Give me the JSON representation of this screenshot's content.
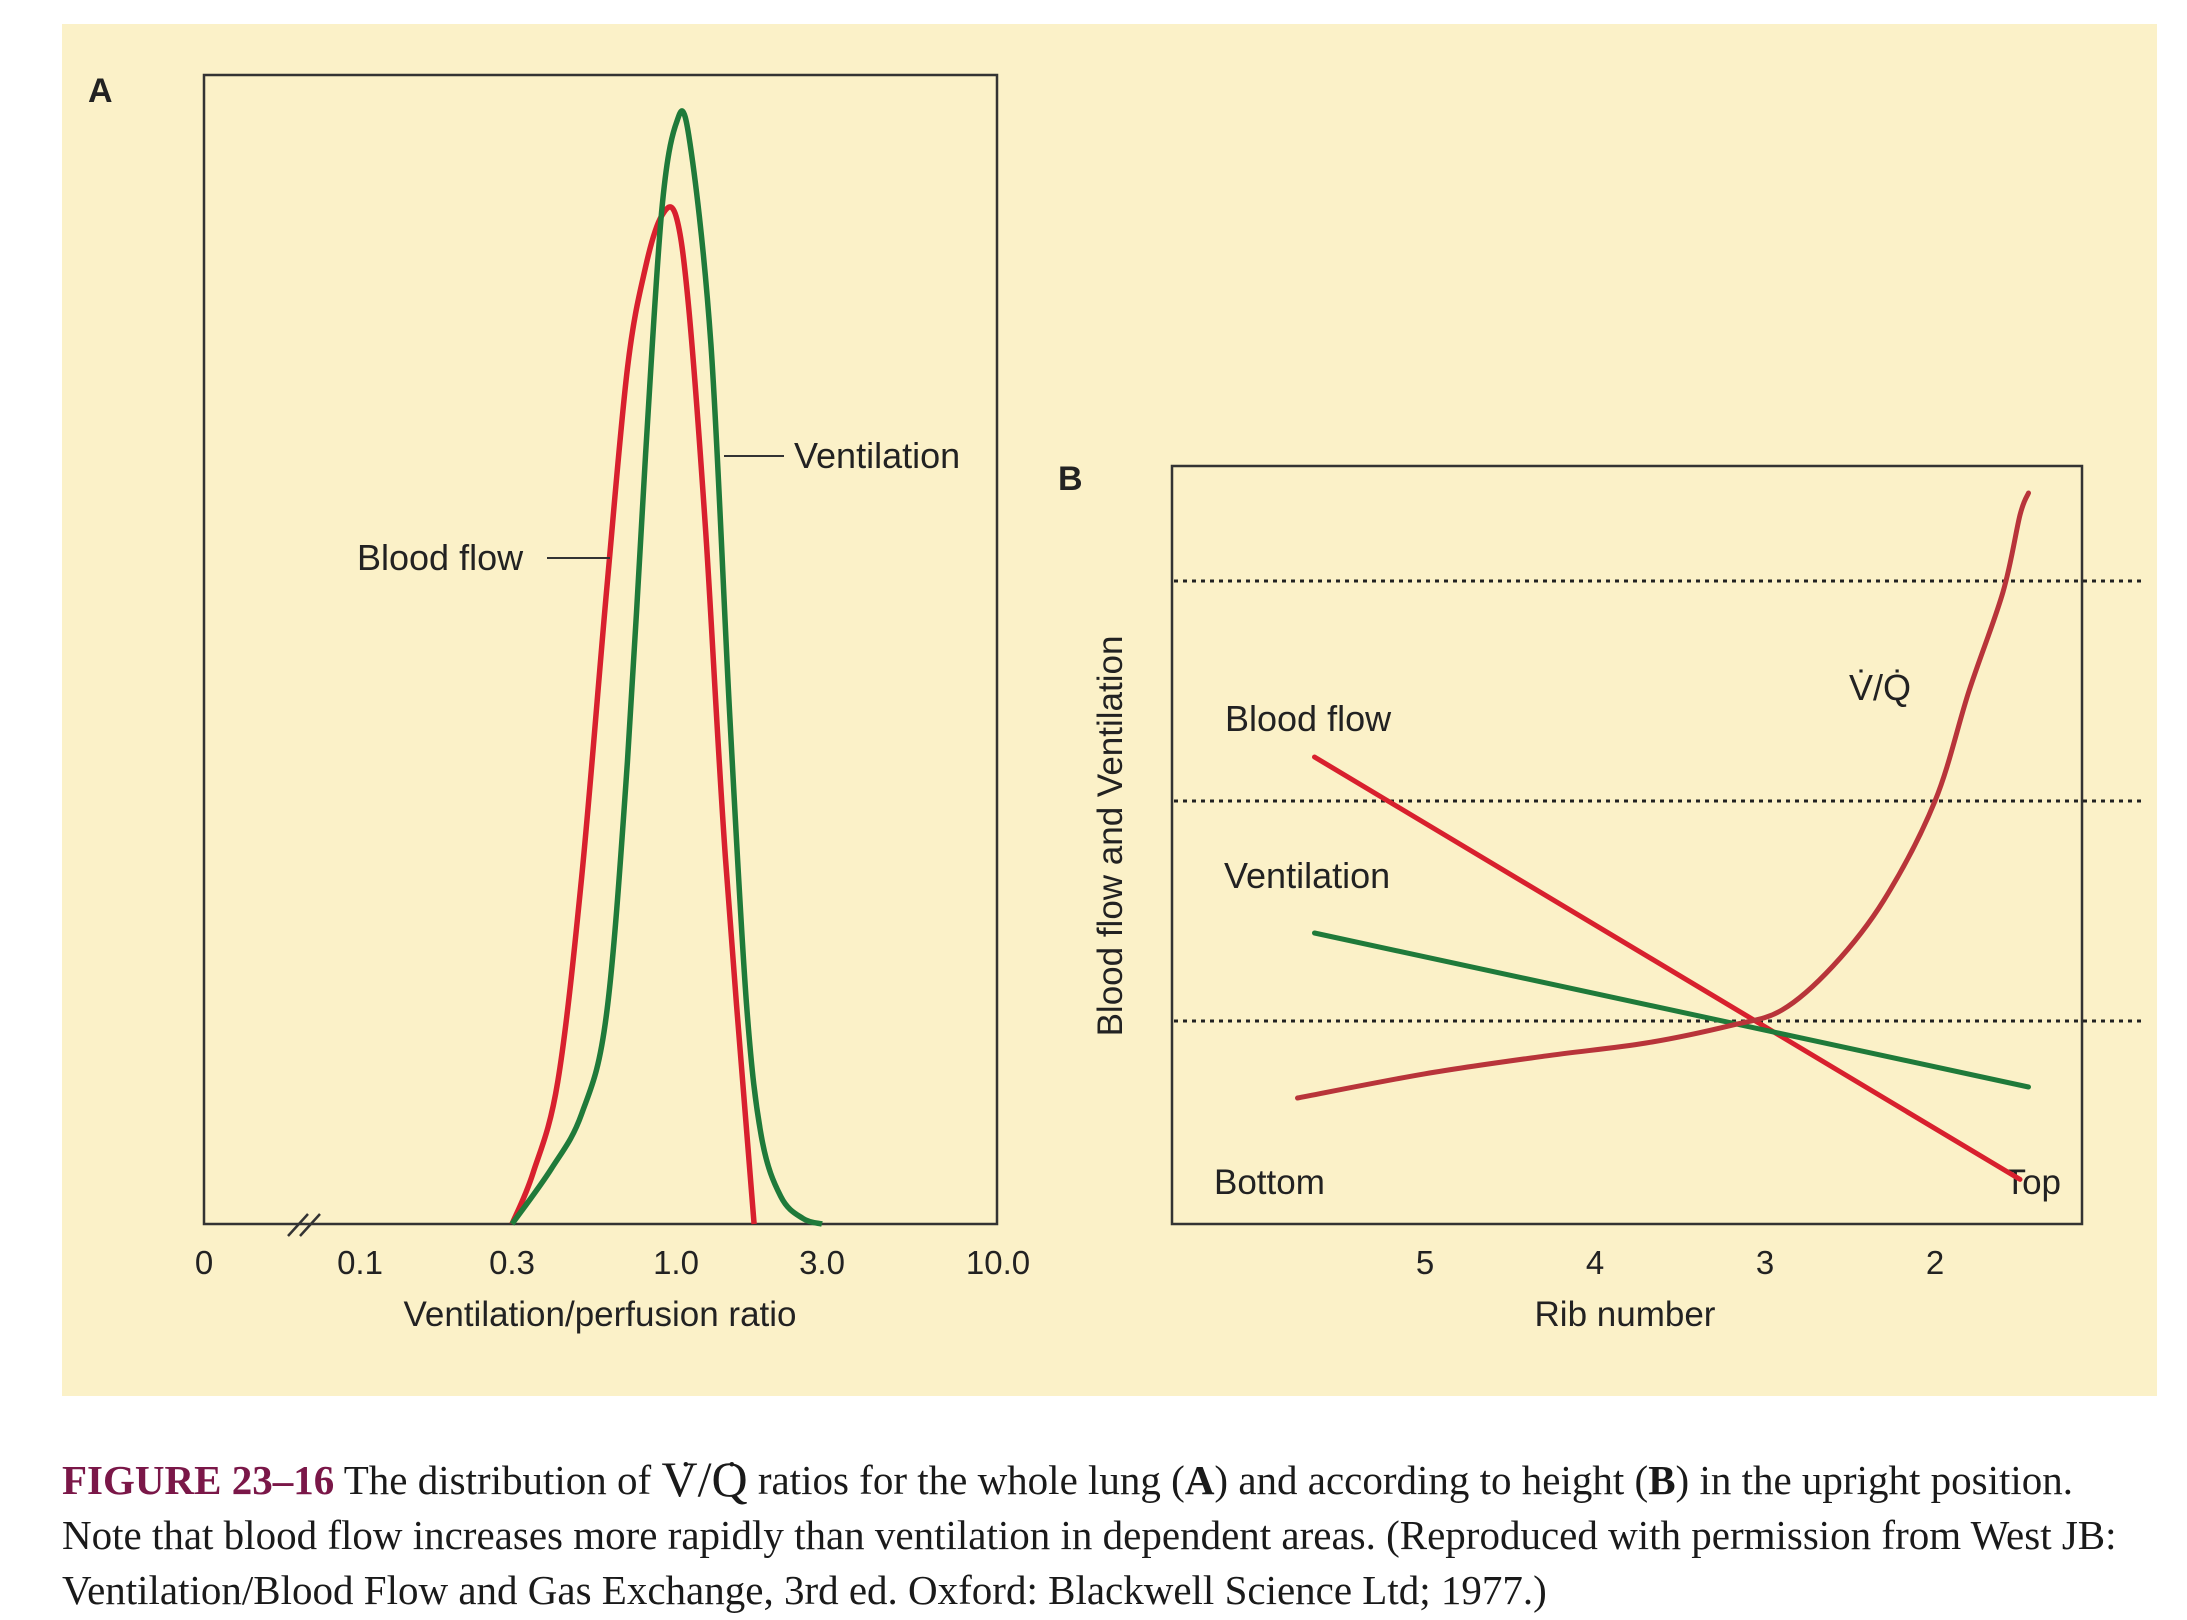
{
  "colors": {
    "panel_bg": "#fbf1c8",
    "blood_flow": "#d8202e",
    "ventilation": "#1f7a3a",
    "vq": "#b8343a",
    "caption_label": "#7a1748",
    "frame": "#333333"
  },
  "chart_data": [
    {
      "panel": "A",
      "type": "line",
      "xlabel": "Ventilation/perfusion ratio",
      "xscale": "log",
      "x_ticks": [
        "0",
        "0.1",
        "0.3",
        "1.0",
        "3.0",
        "10.0"
      ],
      "x_break": true,
      "series": [
        {
          "name": "Blood flow",
          "x": [
            0.3,
            0.35,
            0.42,
            0.5,
            0.6,
            0.7,
            0.8,
            0.9,
            1.0,
            1.1,
            1.25,
            1.45,
            1.8
          ],
          "y": [
            0,
            0.05,
            0.14,
            0.34,
            0.62,
            0.84,
            0.94,
            0.99,
            0.99,
            0.9,
            0.68,
            0.36,
            0
          ]
        },
        {
          "name": "Ventilation",
          "x": [
            0.3,
            0.4,
            0.5,
            0.6,
            0.7,
            0.8,
            0.9,
            1.0,
            1.1,
            1.3,
            1.5,
            1.7,
            1.9,
            2.2,
            2.6,
            3.0
          ],
          "y": [
            0,
            0.05,
            0.1,
            0.19,
            0.42,
            0.7,
            0.92,
            1.0,
            0.99,
            0.8,
            0.46,
            0.2,
            0.08,
            0.025,
            0.005,
            0
          ]
        }
      ]
    },
    {
      "panel": "B",
      "type": "line",
      "xlabel": "Rib number",
      "ylabel": "Blood flow and Ventilation",
      "x_ticks": [
        "5",
        "4",
        "3",
        "2"
      ],
      "x_range": [
        5.8,
        1.0
      ],
      "y2_ticks": [
        "1",
        "2",
        "3"
      ],
      "y2_range": [
        0,
        3.5
      ],
      "end_labels": [
        "Bottom",
        "Top"
      ],
      "gridlines": "dotted at 1, 2, 3",
      "series": [
        {
          "name": "Blood flow",
          "x": [
            5.65,
            1.5
          ],
          "y": [
            2.2,
            0.28
          ]
        },
        {
          "name": "Ventilation",
          "x": [
            5.65,
            1.45
          ],
          "y": [
            1.4,
            0.7
          ]
        },
        {
          "name": "V̇/Q̇",
          "x": [
            5.75,
            5.0,
            4.3,
            3.7,
            3.2,
            2.9,
            2.6,
            2.3,
            2.0,
            1.8,
            1.6,
            1.5,
            1.45
          ],
          "y": [
            0.65,
            0.76,
            0.84,
            0.9,
            0.98,
            1.05,
            1.25,
            1.55,
            2.0,
            2.5,
            2.95,
            3.3,
            3.4
          ]
        }
      ]
    }
  ],
  "labels": {
    "panel_a": "A",
    "panel_b": "B",
    "a_blood_flow": "Blood flow",
    "a_ventilation": "Ventilation",
    "b_blood_flow": "Blood flow",
    "b_ventilation": "Ventilation",
    "b_vq": "V̇/Q̇"
  },
  "caption": {
    "figure_label": "FIGURE 23–16",
    "part1": "The distribution of",
    "vq_v": "V",
    "vq_slash": "/",
    "vq_q": "Q",
    "part2": "ratios for the whole lung (",
    "a": "A",
    "part3": ") and according to height (",
    "b": "B",
    "part4": ") in the upright position. Note that blood flow increases more rapidly than ventilation in dependent areas. (Reproduced with permission from West JB: Ventilation/Blood Flow and Gas Exchange, 3rd ed. Oxford: Blackwell Science Ltd; 1977.)"
  }
}
